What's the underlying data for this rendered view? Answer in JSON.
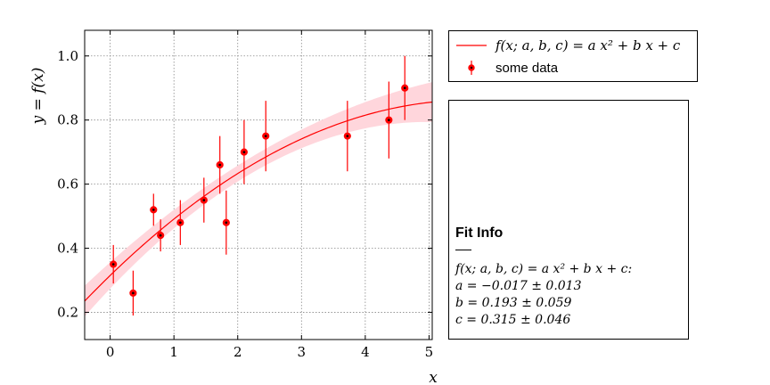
{
  "chart_data": {
    "type": "scatter",
    "xlabel": "x",
    "ylabel": "y = f(x)",
    "xlim": [
      -0.4,
      5.05
    ],
    "ylim": [
      0.115,
      1.08
    ],
    "xticks": [
      0,
      1,
      2,
      3,
      4,
      5
    ],
    "yticks": [
      0.2,
      0.4,
      0.6,
      0.8,
      1.0
    ],
    "xtick_labels": [
      "0",
      "1",
      "2",
      "3",
      "4",
      "5"
    ],
    "ytick_labels": [
      "0.2",
      "0.4",
      "0.6",
      "0.8",
      "1.0"
    ],
    "grid": true,
    "legend": "outside-right-top",
    "series": [
      {
        "name": "some data",
        "kind": "errorbar",
        "color": "#ff0000",
        "points": [
          {
            "x": 0.05,
            "y": 0.35,
            "err": 0.06
          },
          {
            "x": 0.36,
            "y": 0.26,
            "err": 0.07
          },
          {
            "x": 0.68,
            "y": 0.52,
            "err": 0.05
          },
          {
            "x": 0.79,
            "y": 0.44,
            "err": 0.05
          },
          {
            "x": 1.1,
            "y": 0.48,
            "err": 0.07
          },
          {
            "x": 1.47,
            "y": 0.55,
            "err": 0.07
          },
          {
            "x": 1.72,
            "y": 0.66,
            "err": 0.09
          },
          {
            "x": 1.82,
            "y": 0.48,
            "err": 0.1
          },
          {
            "x": 2.1,
            "y": 0.7,
            "err": 0.1
          },
          {
            "x": 2.44,
            "y": 0.75,
            "err": 0.11
          },
          {
            "x": 3.72,
            "y": 0.75,
            "err": 0.11
          },
          {
            "x": 4.37,
            "y": 0.8,
            "err": 0.12
          },
          {
            "x": 4.62,
            "y": 0.9,
            "err": 0.1
          }
        ]
      },
      {
        "name": "f(x; a, b, c) = a x² + b x + c",
        "kind": "fit-curve",
        "color": "#ff0000",
        "band_color": "#ffd6dc",
        "model": {
          "a": -0.017,
          "b": 0.193,
          "c": 0.315
        }
      }
    ]
  },
  "legend": {
    "fit_label": "f(x; a, b, c) = a x² + b x + c",
    "data_label": "some data"
  },
  "fit_info": {
    "title": "Fit Info",
    "formula": "f(x; a, b, c) = a x² + b x + c:",
    "a_line": "a = −0.017 ± 0.013",
    "b_line": "b = 0.193 ± 0.059",
    "c_line": "c = 0.315 ± 0.046"
  }
}
